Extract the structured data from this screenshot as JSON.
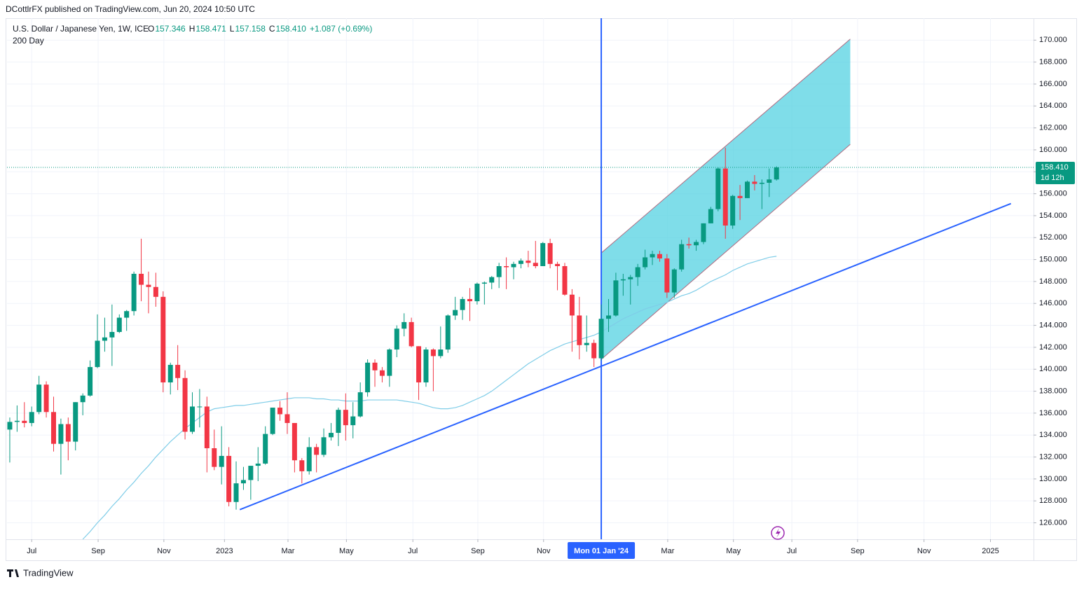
{
  "header": {
    "publisher": "DCottlrFX published on TradingView.com, Jun 20, 2024 10:50 UTC"
  },
  "footer": {
    "brand": "TradingView"
  },
  "chart_data": {
    "type": "candlestick",
    "title": "U.S. Dollar / Japanese Yen, 1W, ICE",
    "ohlc_legend": [
      {
        "label": "O",
        "value": "157.346"
      },
      {
        "label": "H",
        "value": "158.471"
      },
      {
        "label": "L",
        "value": "157.158"
      },
      {
        "label": "C",
        "value": "158.410"
      }
    ],
    "change": "+1.087 (+0.69%)",
    "up_color": "#089981",
    "down_color": "#f23645",
    "candles": {
      "open": [
        134.5,
        135.2,
        135.3,
        135.1,
        136.1,
        138.6,
        136.1,
        133.2,
        135.0,
        133.4,
        137.0,
        137.6,
        140.2,
        142.6,
        142.9,
        143.4,
        144.7,
        145.3,
        148.7,
        147.7,
        147.5,
        146.6,
        138.8,
        140.4,
        139.2,
        134.3,
        136.6,
        136.6,
        132.8,
        131.1,
        132.1,
        127.9,
        129.6,
        129.9,
        131.2,
        131.4,
        134.1,
        136.5,
        135.9,
        135.1,
        131.7,
        130.7,
        132.9,
        132.2,
        133.8,
        134.2,
        136.3,
        134.9,
        135.7,
        137.9,
        140.6,
        139.9,
        139.4,
        141.8,
        143.7,
        144.3,
        142.1,
        138.8,
        141.8,
        141.2,
        141.8,
        144.9,
        145.4,
        146.4,
        146.2,
        147.8,
        147.9,
        148.4,
        149.4,
        149.3,
        149.6,
        149.9,
        149.7,
        149.4,
        151.5,
        149.6,
        149.4,
        146.8,
        144.9,
        142.2,
        142.4,
        141.0,
        144.6,
        144.9,
        148.1,
        148.2,
        148.4,
        149.3,
        150.2,
        150.5,
        150.1,
        147.0,
        149.1,
        151.4,
        151.3,
        151.6,
        153.3,
        154.6,
        158.3,
        153.1,
        155.8,
        155.6,
        157.1,
        156.9,
        157.0,
        157.3
      ],
      "high": [
        135.6,
        136.7,
        137.0,
        136.6,
        139.4,
        138.9,
        137.5,
        135.5,
        135.6,
        137.0,
        137.8,
        140.8,
        145.0,
        144.7,
        145.9,
        145.0,
        145.4,
        148.9,
        151.9,
        148.9,
        148.8,
        147.1,
        140.6,
        142.2,
        139.9,
        137.9,
        138.2,
        137.5,
        134.5,
        134.8,
        132.9,
        131.6,
        131.1,
        131.2,
        132.9,
        134.8,
        136.5,
        137.1,
        137.9,
        135.1,
        131.9,
        133.8,
        133.2,
        134.6,
        135.1,
        136.5,
        137.8,
        137.0,
        138.8,
        140.9,
        140.9,
        140.2,
        141.9,
        144.0,
        145.1,
        144.7,
        142.1,
        142.0,
        141.9,
        143.9,
        145.0,
        146.6,
        146.6,
        147.4,
        147.9,
        148.0,
        148.5,
        149.7,
        150.2,
        149.8,
        150.1,
        150.8,
        151.7,
        151.6,
        151.9,
        149.8,
        149.7,
        147.3,
        146.6,
        144.9,
        142.7,
        145.9,
        146.4,
        148.8,
        148.7,
        148.6,
        149.6,
        150.9,
        150.8,
        150.8,
        150.5,
        149.2,
        151.8,
        152.0,
        151.8,
        153.3,
        154.8,
        158.4,
        160.2,
        155.9,
        156.8,
        157.2,
        157.7,
        157.3,
        158.3,
        158.5
      ],
      "low": [
        131.5,
        134.3,
        134.7,
        134.8,
        135.9,
        135.6,
        132.5,
        130.4,
        131.7,
        132.6,
        135.8,
        137.5,
        140.1,
        141.6,
        140.3,
        143.3,
        143.5,
        144.9,
        146.2,
        145.1,
        145.7,
        137.9,
        137.7,
        138.1,
        133.6,
        134.1,
        134.7,
        130.6,
        130.8,
        129.5,
        127.5,
        127.2,
        129.0,
        128.1,
        129.8,
        131.3,
        134.0,
        135.3,
        134.1,
        130.6,
        129.6,
        130.4,
        130.6,
        132.0,
        133.5,
        133.0,
        133.5,
        133.7,
        135.6,
        137.5,
        138.4,
        138.8,
        138.4,
        141.1,
        143.0,
        142.0,
        137.2,
        138.4,
        138.0,
        141.0,
        141.5,
        144.5,
        144.5,
        144.4,
        145.9,
        145.9,
        147.3,
        147.4,
        147.3,
        148.2,
        149.2,
        149.3,
        149.2,
        149.4,
        149.2,
        147.2,
        146.7,
        141.6,
        140.9,
        141.6,
        140.2,
        140.8,
        143.4,
        144.8,
        146.7,
        145.9,
        147.6,
        149.1,
        149.5,
        149.8,
        146.5,
        146.5,
        148.9,
        151.0,
        150.8,
        151.4,
        153.3,
        154.4,
        151.9,
        152.8,
        153.6,
        155.6,
        156.3,
        154.6,
        155.7,
        157.2
      ],
      "close": [
        135.2,
        135.3,
        135.1,
        136.1,
        138.6,
        136.1,
        133.2,
        135.0,
        133.4,
        137.0,
        137.6,
        140.2,
        142.6,
        142.9,
        143.4,
        144.7,
        145.3,
        148.7,
        147.7,
        147.5,
        146.6,
        138.8,
        140.4,
        139.2,
        134.3,
        136.6,
        136.6,
        132.8,
        131.1,
        132.1,
        127.9,
        129.6,
        129.9,
        131.2,
        131.4,
        134.1,
        136.5,
        135.9,
        135.1,
        131.7,
        130.7,
        132.9,
        132.2,
        133.8,
        134.2,
        136.3,
        134.9,
        135.7,
        137.9,
        140.6,
        139.9,
        139.4,
        141.8,
        143.7,
        144.3,
        142.1,
        138.8,
        141.8,
        141.2,
        141.8,
        144.9,
        145.4,
        146.4,
        146.2,
        147.8,
        147.9,
        148.4,
        149.4,
        149.3,
        149.6,
        149.9,
        149.7,
        149.4,
        151.5,
        149.6,
        149.4,
        146.8,
        144.9,
        142.2,
        142.4,
        141.0,
        144.6,
        144.9,
        148.1,
        148.2,
        148.4,
        149.3,
        150.2,
        150.5,
        150.1,
        147.0,
        149.1,
        151.4,
        151.3,
        151.6,
        153.3,
        154.6,
        158.3,
        153.1,
        155.8,
        155.6,
        157.1,
        156.9,
        157.0,
        157.3,
        158.4
      ]
    },
    "series": [
      {
        "name": "200 Day",
        "color": "#7fcde8",
        "values": [
          null,
          null,
          null,
          null,
          null,
          null,
          null,
          null,
          null,
          null,
          124.5,
          125.2,
          126.0,
          126.7,
          127.5,
          128.2,
          129.0,
          129.7,
          130.5,
          131.2,
          132.0,
          132.7,
          133.4,
          134.0,
          134.6,
          135.1,
          135.6,
          136.1,
          136.4,
          136.5,
          136.6,
          136.7,
          136.7,
          136.8,
          136.9,
          137.0,
          137.1,
          137.2,
          137.3,
          137.4,
          137.4,
          137.4,
          137.3,
          137.3,
          137.2,
          137.2,
          137.1,
          137.1,
          137.1,
          137.2,
          137.2,
          137.2,
          137.2,
          137.2,
          137.1,
          137.0,
          136.9,
          136.7,
          136.5,
          136.4,
          136.4,
          136.5,
          136.7,
          137.0,
          137.3,
          137.6,
          138.0,
          138.5,
          139.0,
          139.5,
          140.0,
          140.5,
          140.9,
          141.3,
          141.7,
          142.0,
          142.3,
          142.5,
          142.7,
          142.9,
          143.1,
          143.4,
          143.8,
          144.2,
          144.6,
          144.9,
          145.2,
          145.5,
          145.7,
          145.9,
          146.1,
          146.4,
          146.7,
          146.9,
          147.2,
          147.6,
          148.0,
          148.3,
          148.6,
          149.0,
          149.3,
          149.6,
          149.8,
          150.0,
          150.2,
          150.3
        ]
      }
    ],
    "last_price": {
      "label": "158.410",
      "countdown": "1d 12h"
    },
    "vertical_line": {
      "x": 81,
      "label": "Mon 01 Jan '24",
      "color": "#2962ff"
    },
    "trend_line": {
      "x": [
        31.5,
        137.1
      ],
      "y": [
        127.2,
        155.1
      ],
      "color": "#2962ff"
    },
    "channel": {
      "x": [
        81,
        115.1
      ],
      "lower": [
        140.9,
        160.5
      ],
      "upper": [
        150.6,
        170.1
      ],
      "color": "#4dd0e1"
    },
    "xlim": [
      -0.38,
      140.2
    ],
    "xticks": [
      {
        "value": 3,
        "label": "Jul"
      },
      {
        "value": 12.1,
        "label": "Sep"
      },
      {
        "value": 21.1,
        "label": "Nov"
      },
      {
        "value": 29.4,
        "label": "2023"
      },
      {
        "value": 38.1,
        "label": "Mar"
      },
      {
        "value": 46.1,
        "label": "May"
      },
      {
        "value": 55.2,
        "label": "Jul"
      },
      {
        "value": 64.1,
        "label": "Sep"
      },
      {
        "value": 73.1,
        "label": "Nov"
      },
      {
        "value": 90.1,
        "label": "Mar"
      },
      {
        "value": 99.1,
        "label": "May"
      },
      {
        "value": 107.1,
        "label": "Jul"
      },
      {
        "value": 116.1,
        "label": "Sep"
      },
      {
        "value": 125.2,
        "label": "Nov"
      },
      {
        "value": 134.3,
        "label": "2025"
      }
    ],
    "ylim": [
      124.5,
      172
    ],
    "yticks": [
      {
        "value": 126,
        "label": "126.000"
      },
      {
        "value": 128,
        "label": "128.000"
      },
      {
        "value": 130,
        "label": "130.000"
      },
      {
        "value": 132,
        "label": "132.000"
      },
      {
        "value": 134,
        "label": "134.000"
      },
      {
        "value": 136,
        "label": "136.000"
      },
      {
        "value": 138,
        "label": "138.000"
      },
      {
        "value": 140,
        "label": "140.000"
      },
      {
        "value": 142,
        "label": "142.000"
      },
      {
        "value": 144,
        "label": "144.000"
      },
      {
        "value": 146,
        "label": "146.000"
      },
      {
        "value": 148,
        "label": "148.000"
      },
      {
        "value": 150,
        "label": "150.000"
      },
      {
        "value": 152,
        "label": "152.000"
      },
      {
        "value": 154,
        "label": "154.000"
      },
      {
        "value": 156,
        "label": "156.000"
      },
      {
        "value": 158,
        "label": "158.000"
      },
      {
        "value": 160,
        "label": "160.000"
      },
      {
        "value": 162,
        "label": "162.000"
      },
      {
        "value": 164,
        "label": "164.000"
      },
      {
        "value": 166,
        "label": "166.000"
      },
      {
        "value": 168,
        "label": "168.000"
      },
      {
        "value": 170,
        "label": "170.000"
      }
    ],
    "grid": true
  }
}
